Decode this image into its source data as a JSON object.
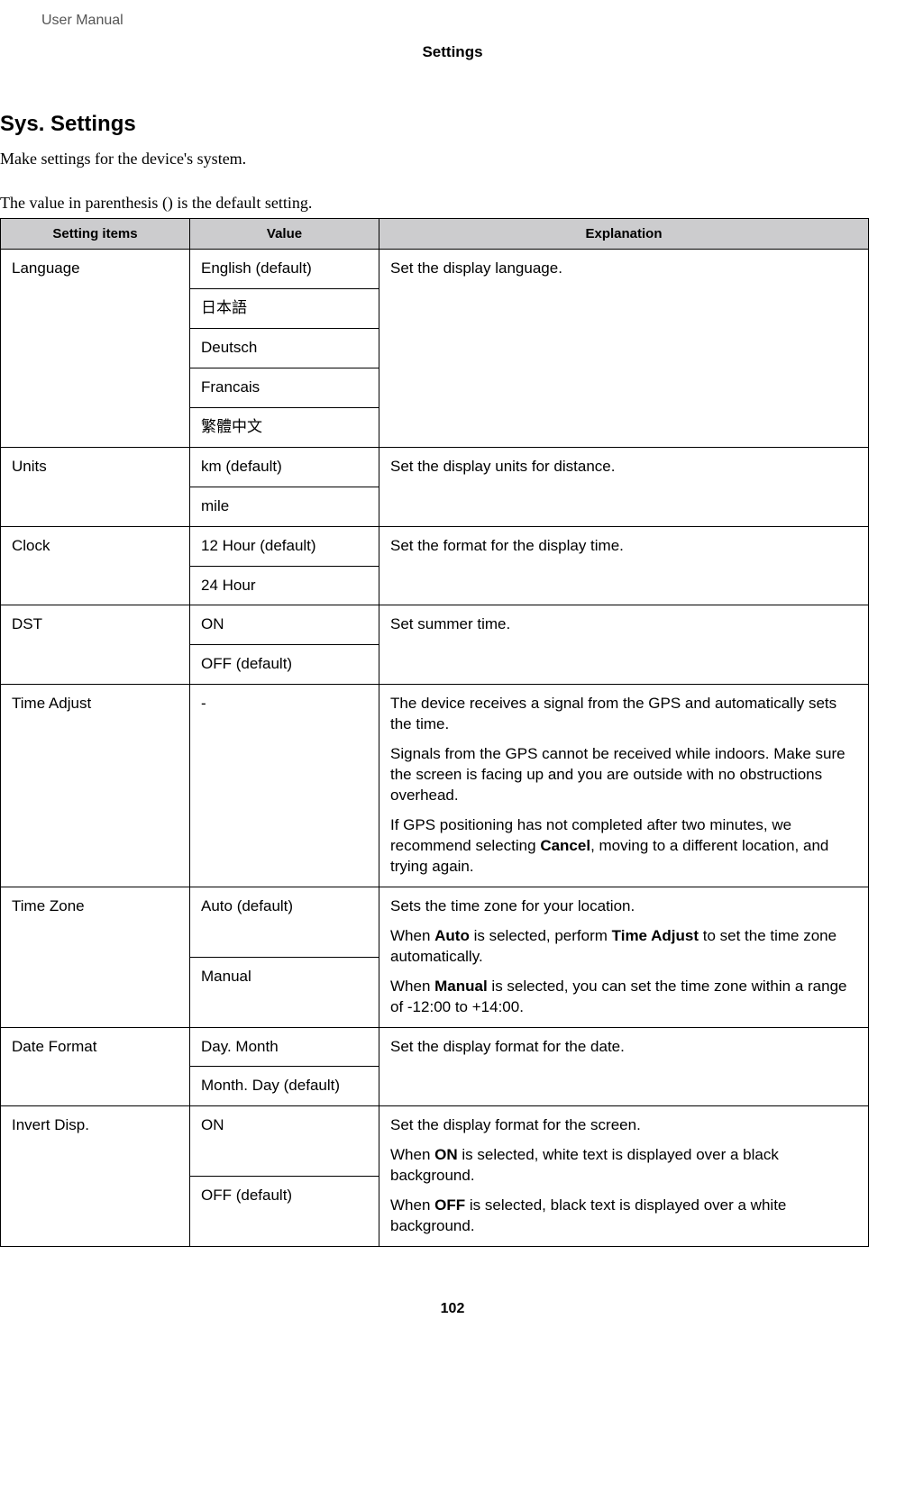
{
  "header": {
    "doc_label": "User Manual",
    "section_title": "Settings"
  },
  "main": {
    "heading": "Sys. Settings",
    "intro": "Make settings for the device's system.",
    "note": "The value in parenthesis () is the default setting.",
    "columns": {
      "c1": "Setting items",
      "c2": "Value",
      "c3": "Explanation"
    },
    "language": {
      "label": "Language",
      "v1": "English (default)",
      "v2": "日本語",
      "v3": "Deutsch",
      "v4": "Francais",
      "v5": "繁體中文",
      "explain": "Set the display language."
    },
    "units": {
      "label": "Units",
      "v1": "km (default)",
      "v2": "mile",
      "explain": "Set the display units for distance."
    },
    "clock": {
      "label": "Clock",
      "v1": "12 Hour (default)",
      "v2": "24 Hour",
      "explain": "Set the format for the display time."
    },
    "dst": {
      "label": "DST",
      "v1": "ON",
      "v2": "OFF (default)",
      "explain": "Set summer time."
    },
    "time_adjust": {
      "label": "Time Adjust",
      "v1": "-",
      "p1": "The device receives a signal from the GPS and automatically sets the time.",
      "p2": "Signals from the GPS cannot be received while indoors. Make sure the screen is facing up and you are outside with no obstructions overhead.",
      "p3a": "If GPS positioning has not completed after two minutes, we recommend selecting ",
      "p3b": "Cancel",
      "p3c": ", moving to a different location, and trying again."
    },
    "time_zone": {
      "label": "Time Zone",
      "v1": "Auto (default)",
      "v2": "Manual",
      "p1": "Sets the time zone for your location.",
      "p2a": "When ",
      "p2b": "Auto",
      "p2c": " is selected, perform ",
      "p2d": "Time Adjust",
      "p2e": " to set the time zone automatically.",
      "p3a": "When ",
      "p3b": "Manual",
      "p3c": " is selected, you can set the time zone within a range of -12:00 to +14:00."
    },
    "date_format": {
      "label": "Date Format",
      "v1": "Day. Month",
      "v2": "Month. Day (default)",
      "explain": "Set the display format for the date."
    },
    "invert_disp": {
      "label": "Invert Disp.",
      "v1": "ON",
      "v2": "OFF (default)",
      "p1": "Set the display format for the screen.",
      "p2a": "When ",
      "p2b": "ON",
      "p2c": " is selected, white text is displayed over a black background.",
      "p3a": "When ",
      "p3b": "OFF",
      "p3c": " is selected, black text is displayed over a white background."
    }
  },
  "footer": {
    "page_number": "102"
  }
}
